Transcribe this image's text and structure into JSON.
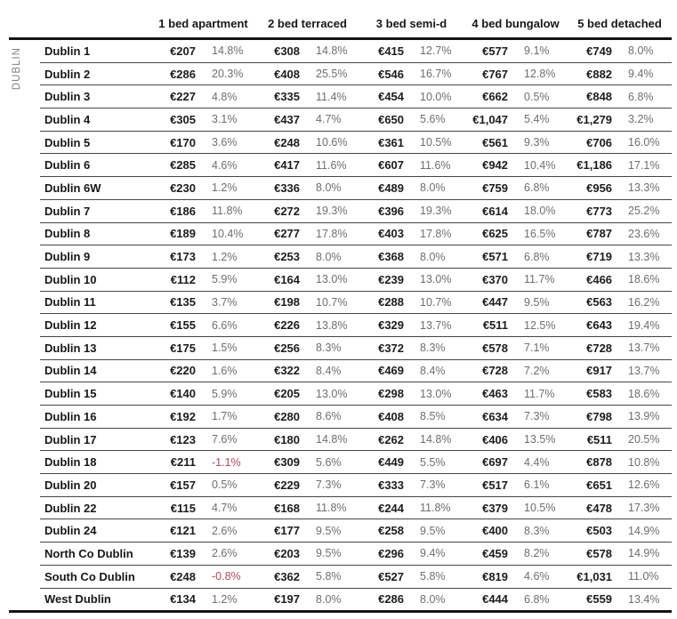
{
  "table": {
    "region_label": "DUBLIN",
    "column_groups": [
      "1 bed apartment",
      "2 bed terraced",
      "3 bed semi-d",
      "4 bed bungalow",
      "5 bed detached"
    ],
    "rows": [
      {
        "label": "Dublin 1",
        "cells": [
          {
            "price": "€207",
            "pct": "14.8%"
          },
          {
            "price": "€308",
            "pct": "14.8%"
          },
          {
            "price": "€415",
            "pct": "12.7%"
          },
          {
            "price": "€577",
            "pct": "9.1%"
          },
          {
            "price": "€749",
            "pct": "8.0%"
          }
        ]
      },
      {
        "label": "Dublin 2",
        "cells": [
          {
            "price": "€286",
            "pct": "20.3%"
          },
          {
            "price": "€408",
            "pct": "25.5%"
          },
          {
            "price": "€546",
            "pct": "16.7%"
          },
          {
            "price": "€767",
            "pct": "12.8%"
          },
          {
            "price": "€882",
            "pct": "9.4%"
          }
        ]
      },
      {
        "label": "Dublin 3",
        "cells": [
          {
            "price": "€227",
            "pct": "4.8%"
          },
          {
            "price": "€335",
            "pct": "11.4%"
          },
          {
            "price": "€454",
            "pct": "10.0%"
          },
          {
            "price": "€662",
            "pct": "0.5%"
          },
          {
            "price": "€848",
            "pct": "6.8%"
          }
        ]
      },
      {
        "label": "Dublin 4",
        "cells": [
          {
            "price": "€305",
            "pct": "3.1%"
          },
          {
            "price": "€437",
            "pct": "4.7%"
          },
          {
            "price": "€650",
            "pct": "5.6%"
          },
          {
            "price": "€1,047",
            "pct": "5.4%"
          },
          {
            "price": "€1,279",
            "pct": "3.2%"
          }
        ]
      },
      {
        "label": "Dublin 5",
        "cells": [
          {
            "price": "€170",
            "pct": "3.6%"
          },
          {
            "price": "€248",
            "pct": "10.6%"
          },
          {
            "price": "€361",
            "pct": "10.5%"
          },
          {
            "price": "€561",
            "pct": "9.3%"
          },
          {
            "price": "€706",
            "pct": "16.0%"
          }
        ]
      },
      {
        "label": "Dublin 6",
        "cells": [
          {
            "price": "€285",
            "pct": "4.6%"
          },
          {
            "price": "€417",
            "pct": "11.6%"
          },
          {
            "price": "€607",
            "pct": "11.6%"
          },
          {
            "price": "€942",
            "pct": "10.4%"
          },
          {
            "price": "€1,186",
            "pct": "17.1%"
          }
        ]
      },
      {
        "label": "Dublin 6W",
        "cells": [
          {
            "price": "€230",
            "pct": "1.2%"
          },
          {
            "price": "€336",
            "pct": "8.0%"
          },
          {
            "price": "€489",
            "pct": "8.0%"
          },
          {
            "price": "€759",
            "pct": "6.8%"
          },
          {
            "price": "€956",
            "pct": "13.3%"
          }
        ]
      },
      {
        "label": "Dublin 7",
        "cells": [
          {
            "price": "€186",
            "pct": "11.8%"
          },
          {
            "price": "€272",
            "pct": "19.3%"
          },
          {
            "price": "€396",
            "pct": "19.3%"
          },
          {
            "price": "€614",
            "pct": "18.0%"
          },
          {
            "price": "€773",
            "pct": "25.2%"
          }
        ]
      },
      {
        "label": "Dublin 8",
        "cells": [
          {
            "price": "€189",
            "pct": "10.4%"
          },
          {
            "price": "€277",
            "pct": "17.8%"
          },
          {
            "price": "€403",
            "pct": "17.8%"
          },
          {
            "price": "€625",
            "pct": "16.5%"
          },
          {
            "price": "€787",
            "pct": "23.6%"
          }
        ]
      },
      {
        "label": "Dublin 9",
        "cells": [
          {
            "price": "€173",
            "pct": "1.2%"
          },
          {
            "price": "€253",
            "pct": "8.0%"
          },
          {
            "price": "€368",
            "pct": "8.0%"
          },
          {
            "price": "€571",
            "pct": "6.8%"
          },
          {
            "price": "€719",
            "pct": "13.3%"
          }
        ]
      },
      {
        "label": "Dublin 10",
        "cells": [
          {
            "price": "€112",
            "pct": "5.9%"
          },
          {
            "price": "€164",
            "pct": "13.0%"
          },
          {
            "price": "€239",
            "pct": "13.0%"
          },
          {
            "price": "€370",
            "pct": "11.7%"
          },
          {
            "price": "€466",
            "pct": "18.6%"
          }
        ]
      },
      {
        "label": "Dublin 11",
        "cells": [
          {
            "price": "€135",
            "pct": "3.7%"
          },
          {
            "price": "€198",
            "pct": "10.7%"
          },
          {
            "price": "€288",
            "pct": "10.7%"
          },
          {
            "price": "€447",
            "pct": "9.5%"
          },
          {
            "price": "€563",
            "pct": "16.2%"
          }
        ]
      },
      {
        "label": "Dublin 12",
        "cells": [
          {
            "price": "€155",
            "pct": "6.6%"
          },
          {
            "price": "€226",
            "pct": "13.8%"
          },
          {
            "price": "€329",
            "pct": "13.7%"
          },
          {
            "price": "€511",
            "pct": "12.5%"
          },
          {
            "price": "€643",
            "pct": "19.4%"
          }
        ]
      },
      {
        "label": "Dublin 13",
        "cells": [
          {
            "price": "€175",
            "pct": "1.5%"
          },
          {
            "price": "€256",
            "pct": "8.3%"
          },
          {
            "price": "€372",
            "pct": "8.3%"
          },
          {
            "price": "€578",
            "pct": "7.1%"
          },
          {
            "price": "€728",
            "pct": "13.7%"
          }
        ]
      },
      {
        "label": "Dublin 14",
        "cells": [
          {
            "price": "€220",
            "pct": "1.6%"
          },
          {
            "price": "€322",
            "pct": "8.4%"
          },
          {
            "price": "€469",
            "pct": "8.4%"
          },
          {
            "price": "€728",
            "pct": "7.2%"
          },
          {
            "price": "€917",
            "pct": "13.7%"
          }
        ]
      },
      {
        "label": "Dublin 15",
        "cells": [
          {
            "price": "€140",
            "pct": "5.9%"
          },
          {
            "price": "€205",
            "pct": "13.0%"
          },
          {
            "price": "€298",
            "pct": "13.0%"
          },
          {
            "price": "€463",
            "pct": "11.7%"
          },
          {
            "price": "€583",
            "pct": "18.6%"
          }
        ]
      },
      {
        "label": "Dublin 16",
        "cells": [
          {
            "price": "€192",
            "pct": "1.7%"
          },
          {
            "price": "€280",
            "pct": "8.6%"
          },
          {
            "price": "€408",
            "pct": "8.5%"
          },
          {
            "price": "€634",
            "pct": "7.3%"
          },
          {
            "price": "€798",
            "pct": "13.9%"
          }
        ]
      },
      {
        "label": "Dublin 17",
        "cells": [
          {
            "price": "€123",
            "pct": "7.6%"
          },
          {
            "price": "€180",
            "pct": "14.8%"
          },
          {
            "price": "€262",
            "pct": "14.8%"
          },
          {
            "price": "€406",
            "pct": "13.5%"
          },
          {
            "price": "€511",
            "pct": "20.5%"
          }
        ]
      },
      {
        "label": "Dublin 18",
        "cells": [
          {
            "price": "€211",
            "pct": "-1.1%"
          },
          {
            "price": "€309",
            "pct": "5.6%"
          },
          {
            "price": "€449",
            "pct": "5.5%"
          },
          {
            "price": "€697",
            "pct": "4.4%"
          },
          {
            "price": "€878",
            "pct": "10.8%"
          }
        ]
      },
      {
        "label": "Dublin 20",
        "cells": [
          {
            "price": "€157",
            "pct": "0.5%"
          },
          {
            "price": "€229",
            "pct": "7.3%"
          },
          {
            "price": "€333",
            "pct": "7.3%"
          },
          {
            "price": "€517",
            "pct": "6.1%"
          },
          {
            "price": "€651",
            "pct": "12.6%"
          }
        ]
      },
      {
        "label": "Dublin 22",
        "cells": [
          {
            "price": "€115",
            "pct": "4.7%"
          },
          {
            "price": "€168",
            "pct": "11.8%"
          },
          {
            "price": "€244",
            "pct": "11.8%"
          },
          {
            "price": "€379",
            "pct": "10.5%"
          },
          {
            "price": "€478",
            "pct": "17.3%"
          }
        ]
      },
      {
        "label": "Dublin 24",
        "cells": [
          {
            "price": "€121",
            "pct": "2.6%"
          },
          {
            "price": "€177",
            "pct": "9.5%"
          },
          {
            "price": "€258",
            "pct": "9.5%"
          },
          {
            "price": "€400",
            "pct": "8.3%"
          },
          {
            "price": "€503",
            "pct": "14.9%"
          }
        ]
      },
      {
        "label": "North Co Dublin",
        "cells": [
          {
            "price": "€139",
            "pct": "2.6%"
          },
          {
            "price": "€203",
            "pct": "9.5%"
          },
          {
            "price": "€296",
            "pct": "9.4%"
          },
          {
            "price": "€459",
            "pct": "8.2%"
          },
          {
            "price": "€578",
            "pct": "14.9%"
          }
        ]
      },
      {
        "label": "South Co Dublin",
        "cells": [
          {
            "price": "€248",
            "pct": "-0.8%"
          },
          {
            "price": "€362",
            "pct": "5.8%"
          },
          {
            "price": "€527",
            "pct": "5.8%"
          },
          {
            "price": "€819",
            "pct": "4.6%"
          },
          {
            "price": "€1,031",
            "pct": "11.0%"
          }
        ]
      },
      {
        "label": "West Dublin",
        "cells": [
          {
            "price": "€134",
            "pct": "1.2%"
          },
          {
            "price": "€197",
            "pct": "8.0%"
          },
          {
            "price": "€286",
            "pct": "8.0%"
          },
          {
            "price": "€444",
            "pct": "6.8%"
          },
          {
            "price": "€559",
            "pct": "13.4%"
          }
        ]
      }
    ]
  },
  "colors": {
    "price_text": "#1c1c1c",
    "pct_text": "#6e6e6e",
    "negative_pct": "#b04a5a",
    "region_label": "#808080",
    "thick_rule": "#141414",
    "thin_rule": "#454545"
  }
}
